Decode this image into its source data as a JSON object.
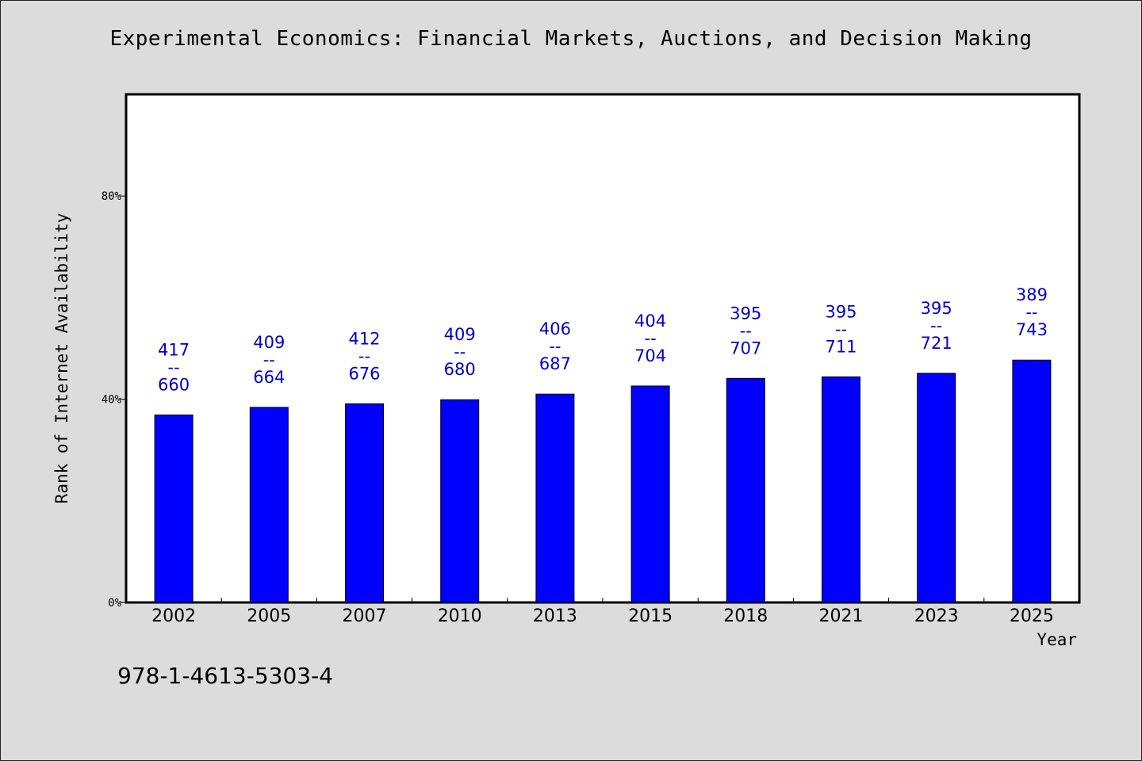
{
  "chart_data": {
    "type": "bar",
    "title": "Experimental Economics: Financial Markets, Auctions, and Decision Making",
    "xlabel": "Year",
    "ylabel": "Rank of Internet Availability",
    "ylim": [
      0,
      1
    ],
    "yticks": [
      0,
      0.4,
      0.8
    ],
    "ytick_labels": [
      "0%",
      "40%",
      "80%"
    ],
    "categories": [
      "2002",
      "2005",
      "2007",
      "2010",
      "2013",
      "2015",
      "2018",
      "2021",
      "2023",
      "2025"
    ],
    "values": [
      0.369,
      0.384,
      0.391,
      0.399,
      0.41,
      0.426,
      0.441,
      0.444,
      0.451,
      0.477
    ],
    "bar_labels": [
      {
        "top": "417",
        "sep": "--",
        "bottom": "660"
      },
      {
        "top": "409",
        "sep": "--",
        "bottom": "664"
      },
      {
        "top": "412",
        "sep": "--",
        "bottom": "676"
      },
      {
        "top": "409",
        "sep": "--",
        "bottom": "680"
      },
      {
        "top": "406",
        "sep": "--",
        "bottom": "687"
      },
      {
        "top": "404",
        "sep": "--",
        "bottom": "704"
      },
      {
        "top": "395",
        "sep": "--",
        "bottom": "707"
      },
      {
        "top": "395",
        "sep": "--",
        "bottom": "711"
      },
      {
        "top": "395",
        "sep": "--",
        "bottom": "721"
      },
      {
        "top": "389",
        "sep": "--",
        "bottom": "743"
      }
    ],
    "grid": false,
    "colors": {
      "bar": "#0000ff",
      "bar_label": "#0000cc",
      "plot_bg": "#ffffff",
      "page_bg": "#dcdcdc"
    }
  },
  "footer": {
    "text": "978-1-4613-5303-4"
  }
}
